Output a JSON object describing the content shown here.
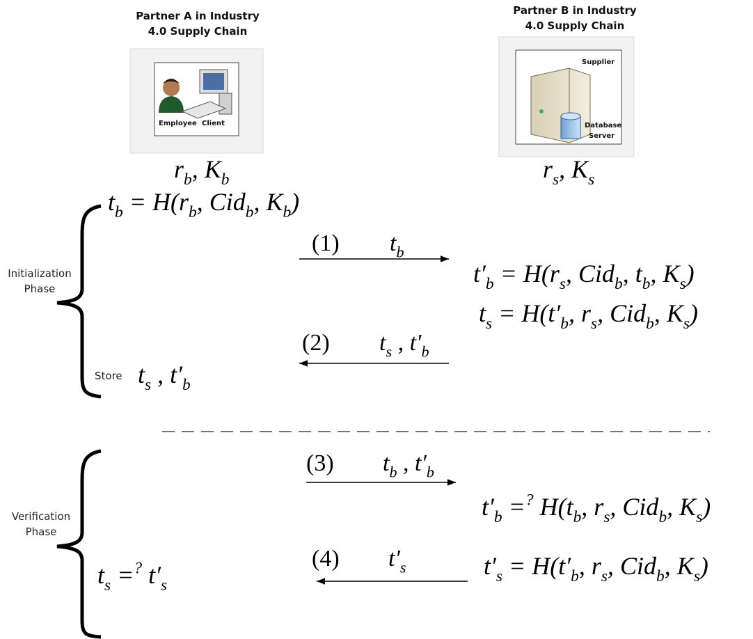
{
  "partners": [
    {
      "title": [
        "Partner A in Industry",
        "4.0 Supply Chain"
      ],
      "icon_labels": [
        "Employee",
        "Client"
      ],
      "keys": [
        {
          "text": "r"
        },
        {
          "sub": "b"
        },
        {
          "text": ", K"
        },
        {
          "sub": "b"
        }
      ]
    },
    {
      "title": [
        "Partner B in Industry",
        "4.0 Supply Chain"
      ],
      "icon_labels": [
        "Supplier",
        "Database",
        "Server"
      ],
      "keys": [
        {
          "text": "r"
        },
        {
          "sub": "s"
        },
        {
          "text": ", K"
        },
        {
          "sub": "s"
        }
      ]
    }
  ],
  "phases": [
    {
      "label": [
        "Initialization",
        "Phase"
      ]
    },
    {
      "label": [
        "Verification",
        "Phase"
      ]
    }
  ],
  "store_label": "Store",
  "messages": [
    {
      "step": "(1)",
      "content": [
        {
          "text": "t"
        },
        {
          "sub": "b"
        }
      ]
    },
    {
      "step": "(2)",
      "content": [
        {
          "text": "t"
        },
        {
          "sub": "s"
        },
        {
          "text": " , t′"
        },
        {
          "sub": "b"
        }
      ]
    },
    {
      "step": "(3)",
      "content": [
        {
          "text": "t"
        },
        {
          "sub": "b"
        },
        {
          "text": " , t′"
        },
        {
          "sub": "b"
        }
      ]
    },
    {
      "step": "(4)",
      "content": [
        {
          "text": "t′"
        },
        {
          "sub": "s"
        }
      ]
    }
  ],
  "formulas": [
    [
      {
        "text": "t"
      },
      {
        "sub": "b"
      },
      {
        "text": " = H(r"
      },
      {
        "sub": "b"
      },
      {
        "text": ", Cid"
      },
      {
        "sub": "b"
      },
      {
        "text": ", K"
      },
      {
        "sub": "b"
      },
      {
        "text": ")"
      }
    ],
    [
      {
        "text": "t′"
      },
      {
        "sub": "b"
      },
      {
        "text": " = H(r"
      },
      {
        "sub": "s"
      },
      {
        "text": ", Cid"
      },
      {
        "sub": "b"
      },
      {
        "text": ", t"
      },
      {
        "sub": "b"
      },
      {
        "text": ", K"
      },
      {
        "sub": "s"
      },
      {
        "text": ")"
      }
    ],
    [
      {
        "text": "t"
      },
      {
        "sub": "s"
      },
      {
        "text": " = H(t′"
      },
      {
        "sub": "b"
      },
      {
        "text": ", r"
      },
      {
        "sub": "s"
      },
      {
        "text": ", Cid"
      },
      {
        "sub": "b"
      },
      {
        "text": ", K"
      },
      {
        "sub": "s"
      },
      {
        "text": ")"
      }
    ],
    [
      {
        "text": "t"
      },
      {
        "sub": "s"
      },
      {
        "text": " , t′"
      },
      {
        "sub": "b"
      }
    ],
    [
      {
        "text": "t′"
      },
      {
        "sub": "b"
      },
      {
        "text": " ="
      },
      {
        "sup": "?"
      },
      {
        "text": " H(t"
      },
      {
        "sub": "b"
      },
      {
        "text": ", r"
      },
      {
        "sub": "s"
      },
      {
        "text": ", Cid"
      },
      {
        "sub": "b"
      },
      {
        "text": ", K"
      },
      {
        "sub": "s"
      },
      {
        "text": ")"
      }
    ],
    [
      {
        "text": "t′"
      },
      {
        "sub": "s"
      },
      {
        "text": " = H(t′"
      },
      {
        "sub": "b"
      },
      {
        "text": ", r"
      },
      {
        "sub": "s"
      },
      {
        "text": ", Cid"
      },
      {
        "sub": "b"
      },
      {
        "text": ", K"
      },
      {
        "sub": "s"
      },
      {
        "text": ")"
      }
    ],
    [
      {
        "text": "t"
      },
      {
        "sub": "s"
      },
      {
        "text": " ="
      },
      {
        "sup": "?"
      },
      {
        "text": " t′"
      },
      {
        "sub": "s"
      }
    ]
  ]
}
